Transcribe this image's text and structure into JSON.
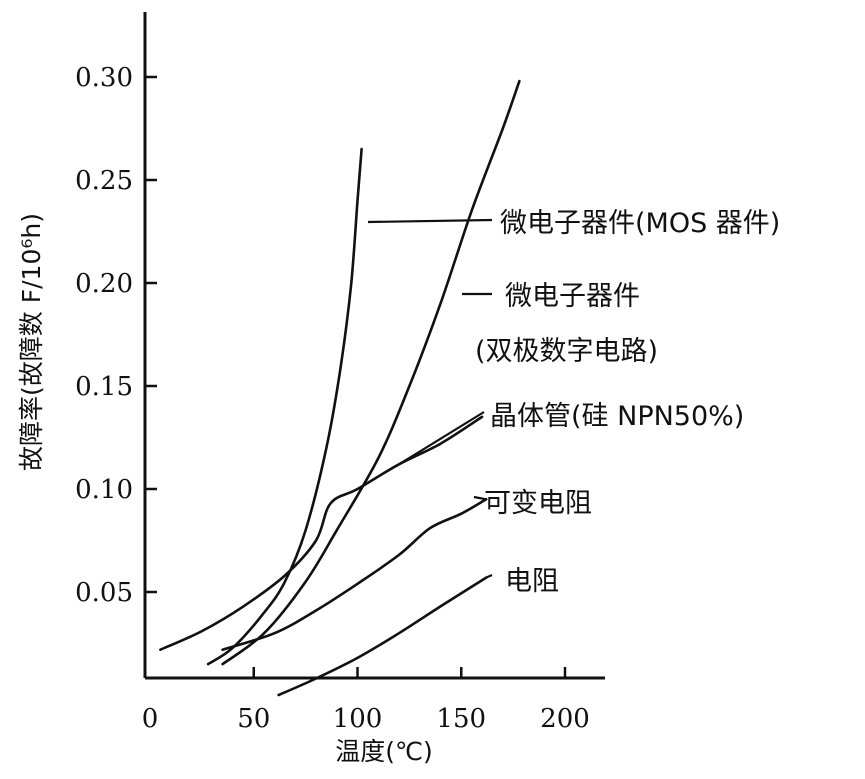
{
  "chart_data": {
    "type": "line",
    "xlabel": "温度(℃)",
    "ylabel": "故障率(故障数 F/10⁶h)",
    "xlim": [
      0,
      200
    ],
    "ylim": [
      0.0,
      0.33
    ],
    "x_ticks": [
      "0",
      "50",
      "100",
      "150",
      "200"
    ],
    "y_ticks": [
      "0.05",
      "0.10",
      "0.15",
      "0.20",
      "0.25",
      "0.30"
    ],
    "grid": false,
    "legend": "inline-labels-right",
    "series": [
      {
        "name": "微电子器件(MOS 器件)",
        "points": [
          [
            28,
            0.015
          ],
          [
            40,
            0.023
          ],
          [
            55,
            0.04
          ],
          [
            65,
            0.055
          ],
          [
            75,
            0.08
          ],
          [
            85,
            0.12
          ],
          [
            92,
            0.16
          ],
          [
            97,
            0.2
          ],
          [
            100,
            0.24
          ],
          [
            102,
            0.265
          ]
        ]
      },
      {
        "name_lines": [
          "微电子器件",
          "(双极数字电路)"
        ],
        "points": [
          [
            35,
            0.015
          ],
          [
            55,
            0.03
          ],
          [
            75,
            0.055
          ],
          [
            90,
            0.08
          ],
          [
            110,
            0.115
          ],
          [
            125,
            0.15
          ],
          [
            140,
            0.19
          ],
          [
            155,
            0.235
          ],
          [
            170,
            0.275
          ],
          [
            178,
            0.298
          ]
        ]
      },
      {
        "name": "晶体管(硅 NPN50%)",
        "points": [
          [
            5,
            0.022
          ],
          [
            25,
            0.031
          ],
          [
            45,
            0.043
          ],
          [
            65,
            0.058
          ],
          [
            80,
            0.075
          ],
          [
            87,
            0.093
          ],
          [
            100,
            0.1
          ],
          [
            120,
            0.112
          ],
          [
            140,
            0.122
          ],
          [
            160,
            0.135
          ]
        ]
      },
      {
        "name": "可变电阻",
        "points": [
          [
            35,
            0.022
          ],
          [
            60,
            0.03
          ],
          [
            80,
            0.041
          ],
          [
            100,
            0.054
          ],
          [
            120,
            0.068
          ],
          [
            135,
            0.081
          ],
          [
            150,
            0.088
          ],
          [
            162,
            0.095
          ]
        ]
      },
      {
        "name": "电阻",
        "points": [
          [
            62,
            0.0
          ],
          [
            80,
            0.008
          ],
          [
            100,
            0.018
          ],
          [
            120,
            0.03
          ],
          [
            140,
            0.043
          ],
          [
            162,
            0.057
          ]
        ]
      }
    ]
  }
}
